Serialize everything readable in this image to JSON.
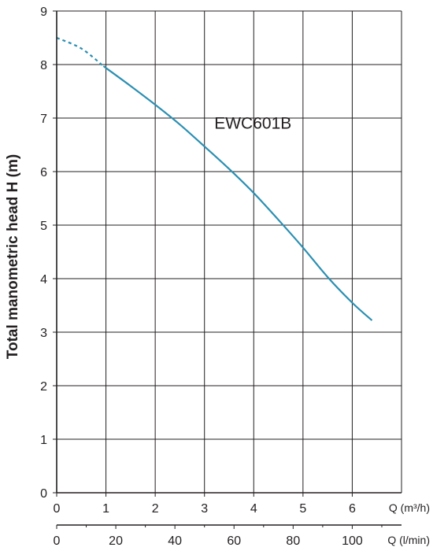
{
  "chart_data": {
    "type": "line",
    "title": "",
    "ylabel": "Total manometric head H (m)",
    "ylim": [
      0,
      9
    ],
    "y_ticks": [
      "0",
      "1",
      "2",
      "3",
      "4",
      "5",
      "6",
      "7",
      "8",
      "9"
    ],
    "x_axes": [
      {
        "unit_label": "Q (m³/h)",
        "lim": [
          0,
          7
        ],
        "ticks": [
          "0",
          "1",
          "2",
          "3",
          "4",
          "5",
          "6"
        ],
        "tick_values": [
          0,
          1,
          2,
          3,
          4,
          5,
          6
        ]
      },
      {
        "unit_label": "Q (l/min)",
        "lim": [
          0,
          116.67
        ],
        "ticks": [
          "0",
          "20",
          "40",
          "60",
          "80",
          "100"
        ],
        "tick_values": [
          0,
          20,
          40,
          60,
          80,
          100
        ]
      }
    ],
    "grid": true,
    "series": [
      {
        "name": "EWC601B",
        "color": "#2b8fb2",
        "extrapolated": {
          "x": [
            0,
            0.5,
            0.95
          ],
          "y": [
            8.5,
            8.3,
            7.97
          ]
        },
        "measured": {
          "x": [
            0.95,
            1.5,
            2.0,
            2.5,
            3.0,
            3.5,
            4.0,
            4.5,
            5.0,
            5.5,
            6.0,
            6.4
          ],
          "y": [
            7.97,
            7.6,
            7.25,
            6.88,
            6.47,
            6.05,
            5.6,
            5.1,
            4.58,
            4.03,
            3.55,
            3.22
          ]
        }
      }
    ]
  }
}
